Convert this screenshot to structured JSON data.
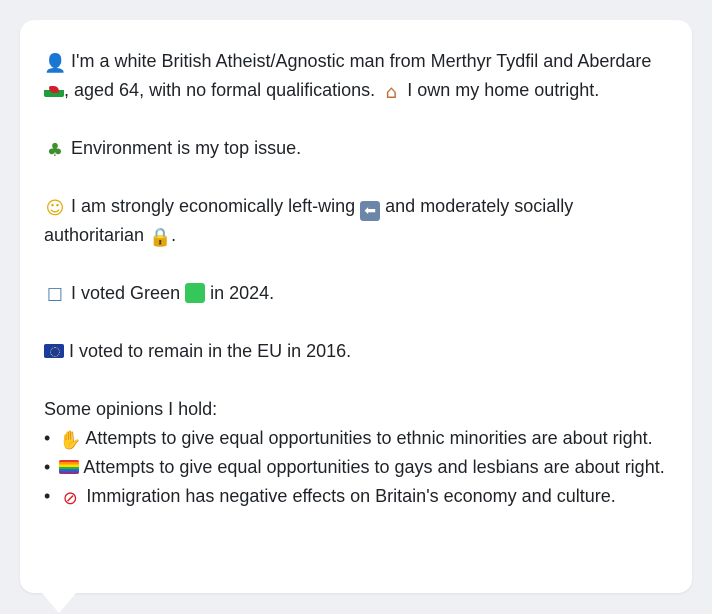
{
  "profile": {
    "intro": {
      "icon": "person-icon",
      "text_before_flag": "I'm a white British Atheist/Agnostic man from Merthyr Tydfil and Aberdare",
      "flag_icon": "wales-flag-icon",
      "text_after_flag": ", aged 64, with no formal qualifications.",
      "home_icon": "house-icon",
      "text_home": "I own my home outright."
    },
    "top_issue": {
      "icon": "tree-icon",
      "text": "Environment is my top issue."
    },
    "economic": {
      "icon": "thinking-face-icon",
      "text_before": "I am strongly economically left-wing",
      "left_arrow_icon": "left-arrow-icon",
      "text_after": "and moderately socially authoritarian",
      "lock_icon": "lock-icon",
      "period": "."
    },
    "vote_2024": {
      "icon": "ballot-box-icon",
      "text_before": "I voted Green",
      "green_square_icon": "green-square-icon",
      "text_after": "in 2024."
    },
    "eu_vote": {
      "icon": "eu-flag-icon",
      "text": "I voted to remain in the EU in 2016."
    },
    "opinions_heading": "Some opinions I hold:",
    "opinions": [
      {
        "bullet": "•",
        "icon": "handshake-icon",
        "text": "Attempts to give equal opportunities to ethnic minorities are about right."
      },
      {
        "bullet": "•",
        "icon": "rainbow-flag-icon",
        "text": "Attempts to give equal opportunities to gays and lesbians are about right."
      },
      {
        "bullet": "•",
        "icon": "prohibited-icon",
        "text": "Immigration has negative effects on Britain's economy and culture."
      }
    ]
  },
  "colors": {
    "background": "#eef0f3",
    "card": "#ffffff",
    "text": "#1f2328"
  }
}
